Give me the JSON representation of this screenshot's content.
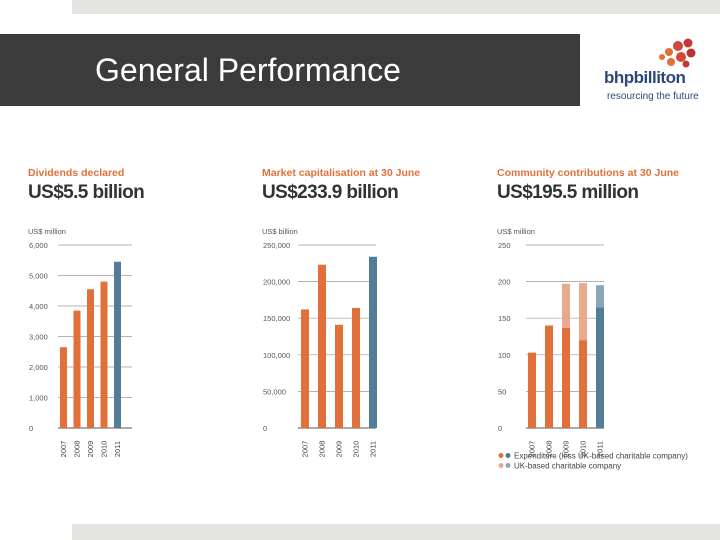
{
  "slide": {
    "title": "General Performance"
  },
  "logo": {
    "name": "bhpbilliton",
    "tagline": "resourcing the future",
    "mark": "bhp-logo-mark"
  },
  "colors": {
    "orange": "#e2703a",
    "orange_light": "#e9a98d",
    "blue": "#527d94",
    "blue_light": "#8aa6b8",
    "bar_dark": "#3b3b3b"
  },
  "chart_data": [
    {
      "type": "bar",
      "title": "Dividends declared",
      "subtitle": "US$5.5 billion",
      "ylabel": "US$ million",
      "ylim": [
        0,
        6000
      ],
      "yticks": [
        "0",
        "1,000",
        "2,000",
        "3,000",
        "4,000",
        "5,000",
        "6,000"
      ],
      "categories": [
        "2007",
        "2008",
        "2009",
        "2010",
        "2011"
      ],
      "values": [
        2650,
        3850,
        4550,
        4800,
        5450
      ],
      "highlight_last": true
    },
    {
      "type": "bar",
      "title": "Market capitalisation at 30 June",
      "subtitle": "US$233.9 billion",
      "ylabel": "US$ billion",
      "ylim": [
        0,
        250000
      ],
      "yticks": [
        "0",
        "50,000",
        "100,000",
        "150,000",
        "200,000",
        "250,000"
      ],
      "categories": [
        "2007",
        "2008",
        "2009",
        "2010",
        "2011"
      ],
      "values": [
        162000,
        223000,
        141000,
        164000,
        233900
      ],
      "highlight_last": true
    },
    {
      "type": "bar",
      "title": "Community contributions at 30 June",
      "subtitle": "US$195.5 million",
      "ylabel": "US$ million",
      "ylim": [
        0,
        250
      ],
      "yticks": [
        "0",
        "50",
        "100",
        "150",
        "200",
        "250"
      ],
      "categories": [
        "2007",
        "2008",
        "2009",
        "2010",
        "2011"
      ],
      "series": [
        {
          "name": "Expenditure (less UK-based charitable company)",
          "values": [
            103,
            140,
            137,
            120,
            165
          ]
        },
        {
          "name": "UK-based charitable company",
          "values": [
            0,
            0,
            60,
            78,
            30
          ]
        }
      ],
      "highlight_last": true
    }
  ]
}
